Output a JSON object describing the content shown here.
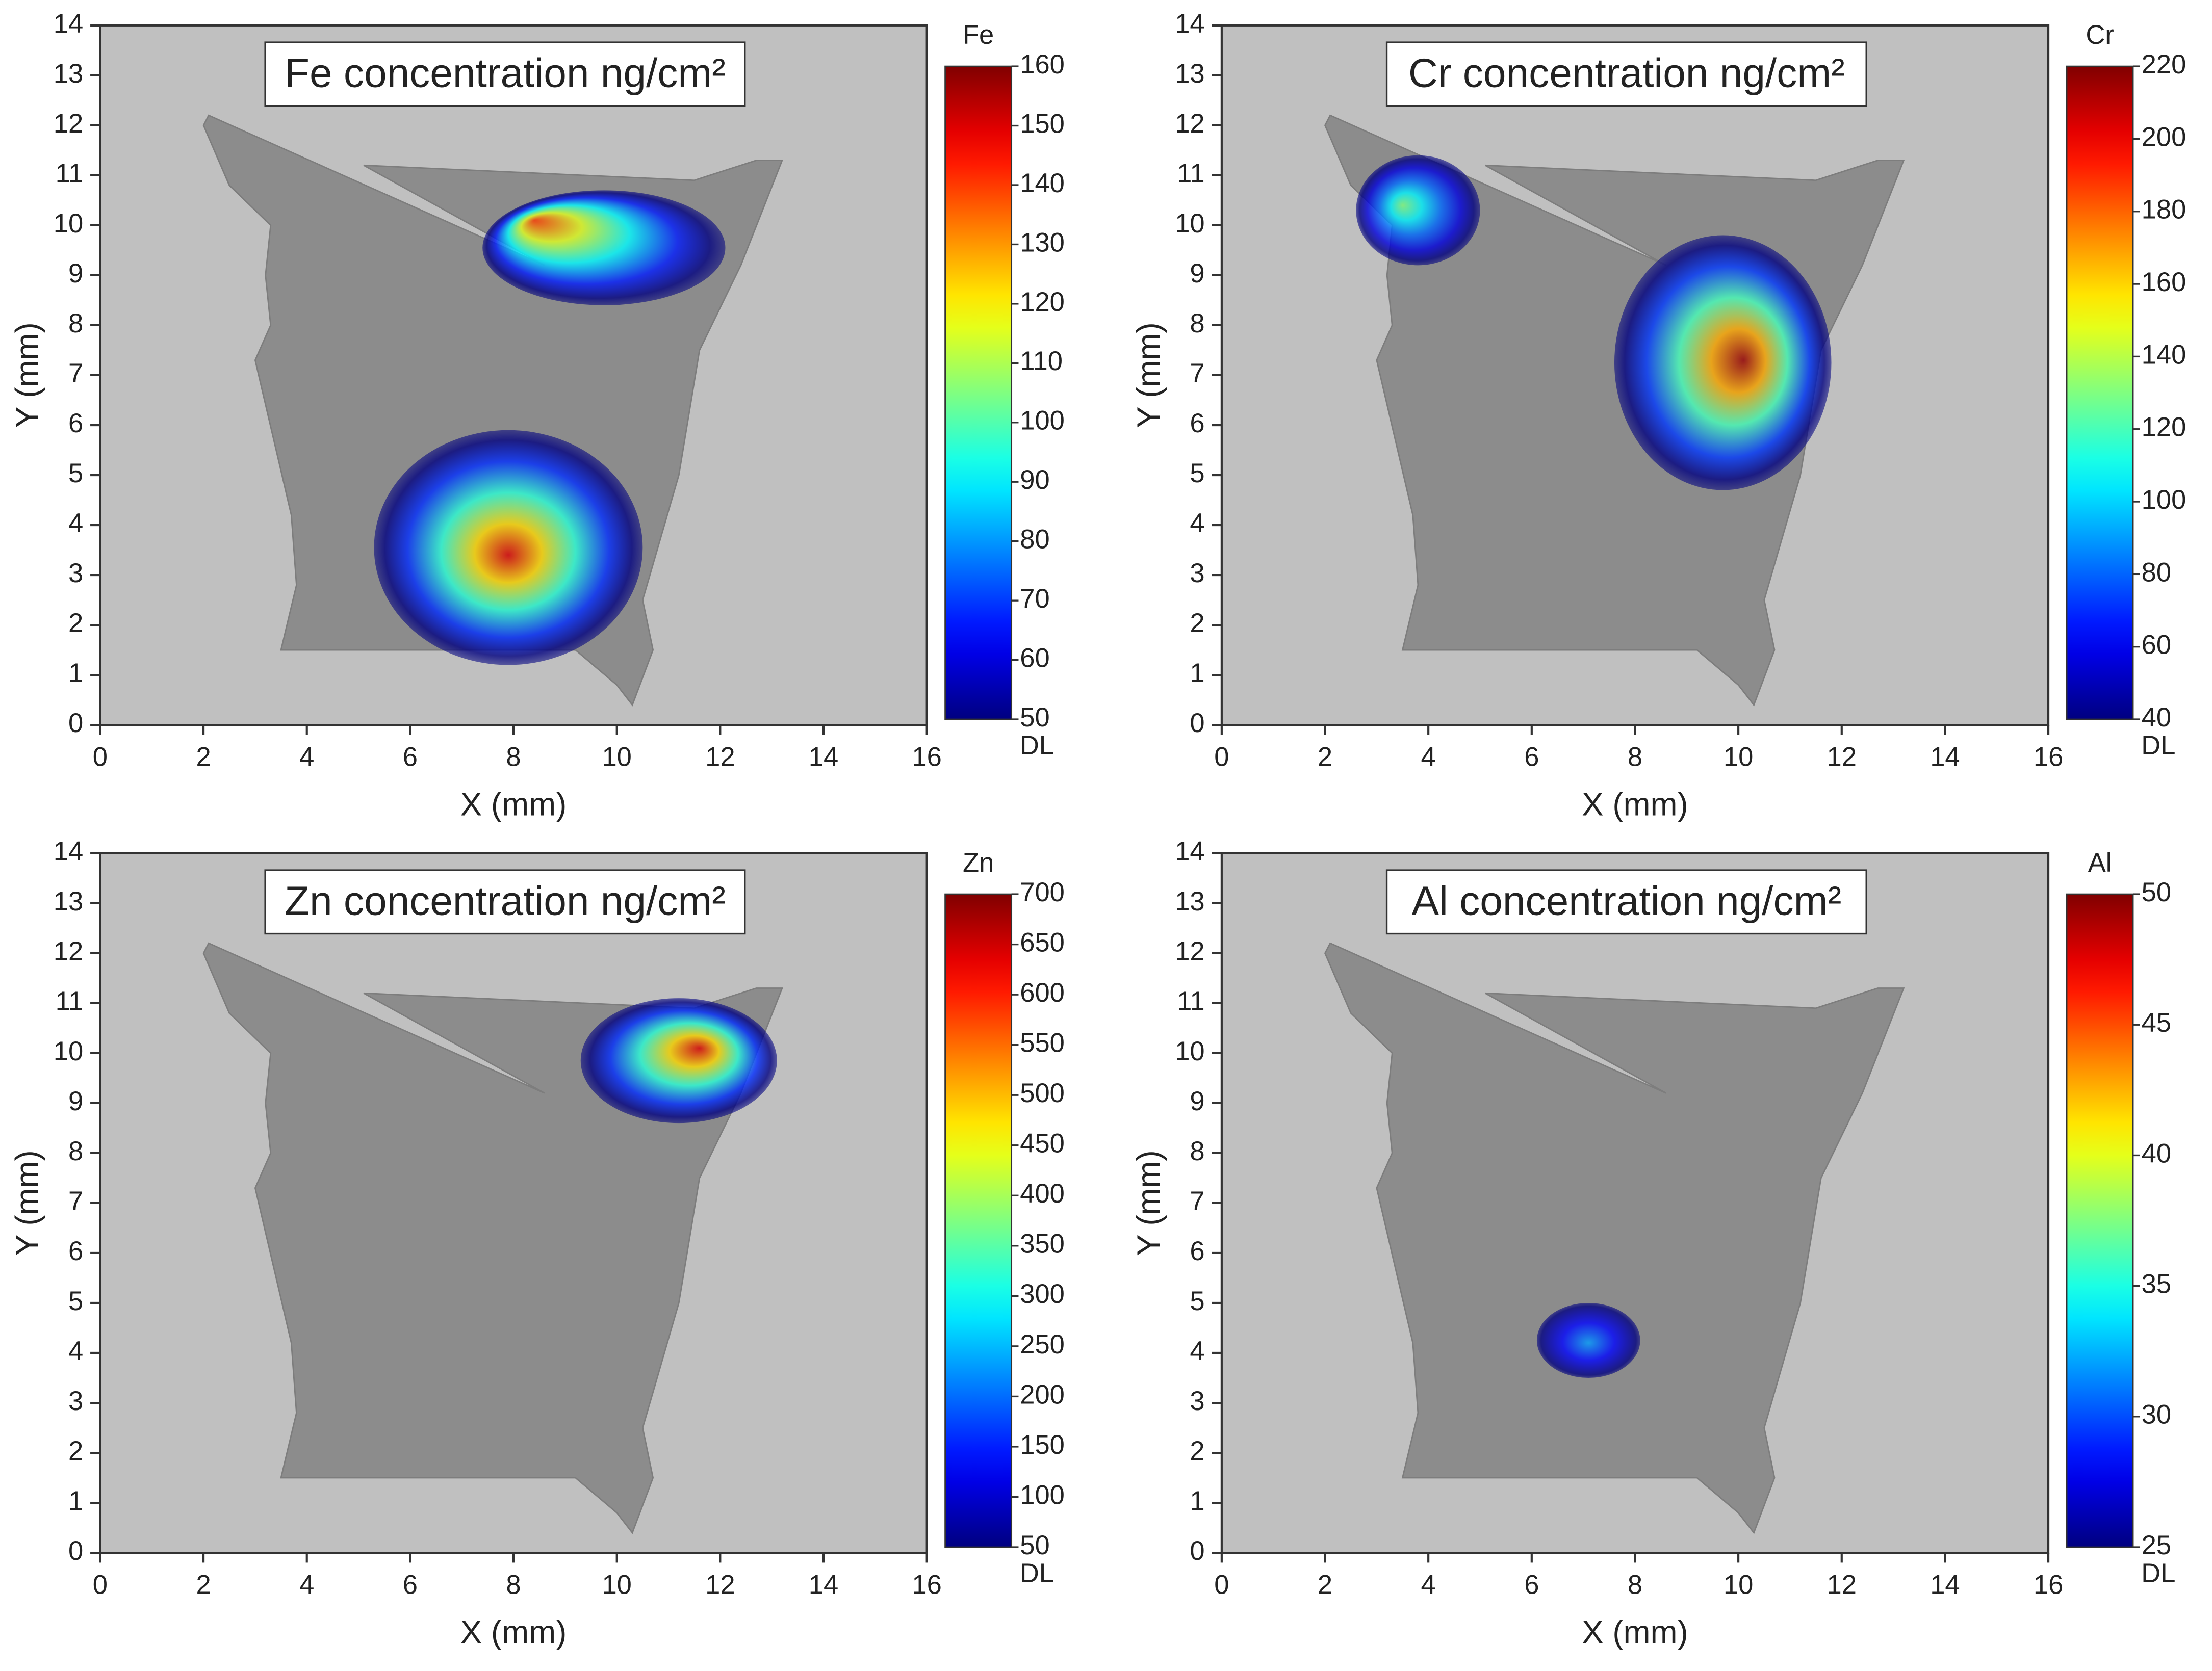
{
  "chart_data": [
    {
      "type": "heatmap",
      "title": "Fe concentration ng/cm²",
      "x_label": "X (mm)",
      "y_label": "Y (mm)",
      "xlim": [
        0,
        16
      ],
      "xticks": [
        0,
        2,
        4,
        6,
        8,
        10,
        12,
        14,
        16
      ],
      "ylim": [
        0,
        14
      ],
      "yticks": [
        0,
        1,
        2,
        3,
        4,
        5,
        6,
        7,
        8,
        9,
        10,
        11,
        12,
        13,
        14
      ],
      "colorbar": {
        "label": "Fe",
        "lim": [
          50,
          160
        ],
        "ticks": [
          50,
          60,
          70,
          80,
          90,
          100,
          110,
          120,
          130,
          140,
          150,
          160
        ],
        "min_label": "DL"
      },
      "hotspots": [
        {
          "x": 7.9,
          "y": 3.4,
          "xrange": [
            5.3,
            10.5
          ],
          "yrange": [
            1.2,
            5.9
          ],
          "peak": 150
        },
        {
          "x": 8.4,
          "y": 10.1,
          "xrange": [
            7.4,
            12.1
          ],
          "yrange": [
            8.4,
            10.7
          ],
          "peak": 140
        }
      ]
    },
    {
      "type": "heatmap",
      "title": "Cr concentration ng/cm²",
      "x_label": "X (mm)",
      "y_label": "Y (mm)",
      "xlim": [
        0,
        16
      ],
      "xticks": [
        0,
        2,
        4,
        6,
        8,
        10,
        12,
        14,
        16
      ],
      "ylim": [
        0,
        14
      ],
      "yticks": [
        0,
        1,
        2,
        3,
        4,
        5,
        6,
        7,
        8,
        9,
        10,
        11,
        12,
        13,
        14
      ],
      "colorbar": {
        "label": "Cr",
        "lim": [
          40,
          220
        ],
        "ticks": [
          40,
          60,
          80,
          100,
          120,
          140,
          160,
          180,
          200,
          220
        ],
        "min_label": "DL"
      },
      "hotspots": [
        {
          "x": 3.5,
          "y": 10.4,
          "xrange": [
            2.6,
            5
          ],
          "yrange": [
            9.2,
            11.4
          ],
          "peak": 130
        },
        {
          "x": 10.1,
          "y": 7.3,
          "xrange": [
            7.6,
            11.8
          ],
          "yrange": [
            4.7,
            9.8
          ],
          "peak": 215
        }
      ]
    },
    {
      "type": "heatmap",
      "title": "Zn concentration ng/cm²",
      "x_label": "X (mm)",
      "y_label": "Y (mm)",
      "xlim": [
        0,
        16
      ],
      "xticks": [
        0,
        2,
        4,
        6,
        8,
        10,
        12,
        14,
        16
      ],
      "ylim": [
        0,
        14
      ],
      "yticks": [
        0,
        1,
        2,
        3,
        4,
        5,
        6,
        7,
        8,
        9,
        10,
        11,
        12,
        13,
        14
      ],
      "colorbar": {
        "label": "Zn",
        "lim": [
          50,
          700
        ],
        "ticks": [
          50,
          100,
          150,
          200,
          250,
          300,
          350,
          400,
          450,
          500,
          550,
          600,
          650,
          700
        ],
        "min_label": "DL"
      },
      "hotspots": [
        {
          "x": 11.6,
          "y": 10.1,
          "xrange": [
            9.3,
            13.1
          ],
          "yrange": [
            8.6,
            11.1
          ],
          "peak": 640
        }
      ]
    },
    {
      "type": "heatmap",
      "title": "Al concentration ng/cm²",
      "x_label": "X (mm)",
      "y_label": "Y (mm)",
      "xlim": [
        0,
        16
      ],
      "xticks": [
        0,
        2,
        4,
        6,
        8,
        10,
        12,
        14,
        16
      ],
      "ylim": [
        0,
        14
      ],
      "yticks": [
        0,
        1,
        2,
        3,
        4,
        5,
        6,
        7,
        8,
        9,
        10,
        11,
        12,
        13,
        14
      ],
      "colorbar": {
        "label": "Al",
        "lim": [
          25,
          50
        ],
        "ticks": [
          25,
          30,
          35,
          40,
          45,
          50
        ],
        "min_label": "DL"
      },
      "hotspots": [
        {
          "x": 7.1,
          "y": 4.2,
          "xrange": [
            6.1,
            8.1
          ],
          "yrange": [
            3.5,
            5
          ],
          "peak": 32
        }
      ]
    }
  ]
}
